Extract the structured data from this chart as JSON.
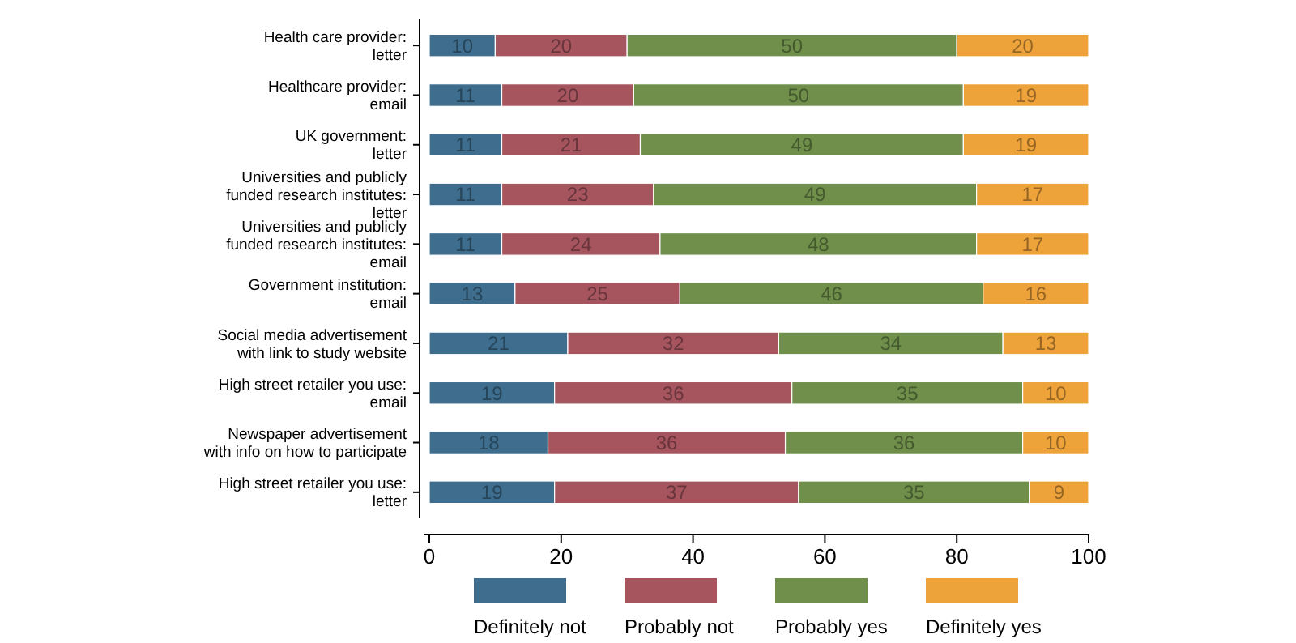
{
  "chart_data": {
    "type": "bar",
    "orientation": "horizontal",
    "stacked": true,
    "data_labels": true,
    "legend": "bottom",
    "grid": false,
    "categories": [
      "Health care provider:\nletter",
      "Healthcare provider:\nemail",
      "UK government:\nletter",
      "Universities and publicly\nfunded research institutes:\nletter",
      "Universities and publicly\nfunded research institutes:\nemail",
      "Government institution:\nemail",
      "Social media advertisement\nwith link to study website",
      "High street retailer you use:\nemail",
      "Newspaper advertisement\nwith info on how to participate",
      "High street retailer you use:\nletter"
    ],
    "series": [
      {
        "name": "Definitely not",
        "color": "#3e6d8e",
        "values": [
          10,
          11,
          11,
          11,
          11,
          13,
          21,
          19,
          18,
          19
        ]
      },
      {
        "name": "Probably not",
        "color": "#a6555f",
        "values": [
          20,
          20,
          21,
          23,
          24,
          25,
          32,
          36,
          36,
          37
        ]
      },
      {
        "name": "Probably yes",
        "color": "#6f8f4b",
        "values": [
          50,
          50,
          49,
          49,
          48,
          46,
          34,
          35,
          36,
          35
        ]
      },
      {
        "name": "Definitely yes",
        "color": "#eea23a",
        "values": [
          20,
          19,
          19,
          17,
          17,
          16,
          13,
          10,
          10,
          9
        ]
      }
    ],
    "xlim": [
      0,
      100
    ],
    "xticks": [
      0,
      20,
      40,
      60,
      80,
      100
    ]
  }
}
